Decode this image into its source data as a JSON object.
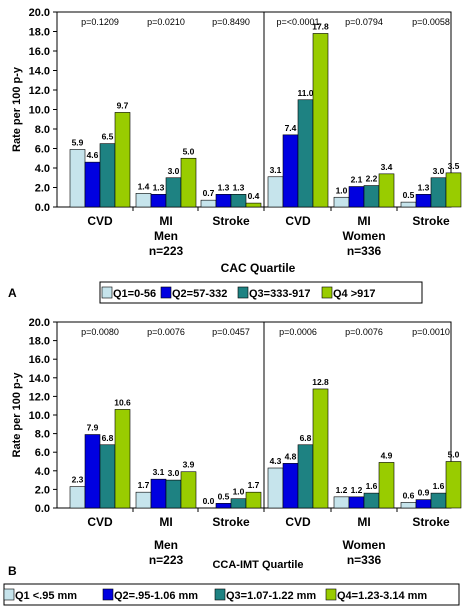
{
  "chart_data": [
    {
      "panel_label": "A",
      "type": "bar",
      "ylabel": "Rate per 100 p-y",
      "ylim": [
        0,
        20
      ],
      "yticks": [
        "0.0",
        "2.0",
        "4.0",
        "6.0",
        "8.0",
        "10.0",
        "12.0",
        "14.0",
        "16.0",
        "18.0",
        "20.0"
      ],
      "xlabel": "CAC Quartile",
      "categories": [
        "CVD",
        "MI",
        "Stroke",
        "CVD",
        "MI",
        "Stroke"
      ],
      "group_labels": [
        {
          "sex": "Men",
          "n": "n=223"
        },
        {
          "sex": "Women",
          "n": "n=336"
        }
      ],
      "p_values": [
        "p=0.1209",
        "p=0.0210",
        "p=0.8490",
        "p=<0.0001",
        "p=0.0794",
        "p=0.0058"
      ],
      "series": [
        {
          "name": "Q1=0-56",
          "color": "#c6e4ec",
          "values": [
            5.9,
            1.4,
            0.7,
            3.1,
            1.0,
            0.5
          ],
          "labels": [
            "5.9",
            "1.4",
            "0.7",
            "3.1",
            "1.0",
            "0.5"
          ]
        },
        {
          "name": "Q2=57-332",
          "color": "#0000e0",
          "values": [
            4.6,
            1.3,
            1.3,
            7.4,
            2.1,
            1.3
          ],
          "labels": [
            "4.6",
            "1.3",
            "1.3",
            "7.4",
            "2.1",
            "1.3"
          ]
        },
        {
          "name": "Q3=333-917",
          "color": "#1e8282",
          "values": [
            6.5,
            3.0,
            1.3,
            11.0,
            2.2,
            3.0
          ],
          "labels": [
            "6.5",
            "3.0",
            "1.3",
            "11.0",
            "2.2",
            "3.0"
          ]
        },
        {
          "name": "Q4 >917",
          "color": "#99cc00",
          "values": [
            9.7,
            5.0,
            0.4,
            17.8,
            3.4,
            3.5
          ],
          "labels": [
            "9.7",
            "5.0",
            "0.4",
            "17.8",
            "3.4",
            "3.5"
          ]
        }
      ]
    },
    {
      "panel_label": "B",
      "type": "bar",
      "ylabel": "Rate per 100 p-y",
      "ylim": [
        0,
        20
      ],
      "yticks": [
        "0.0",
        "2.0",
        "4.0",
        "6.0",
        "8.0",
        "10.0",
        "12.0",
        "14.0",
        "16.0",
        "18.0",
        "20.0"
      ],
      "xlabel": "CCA-IMT Quartile",
      "categories": [
        "CVD",
        "MI",
        "Stroke",
        "CVD",
        "MI",
        "Stroke"
      ],
      "group_labels": [
        {
          "sex": "Men",
          "n": "n=223"
        },
        {
          "sex": "Women",
          "n": "n=336"
        }
      ],
      "p_values": [
        "p=0.0080",
        "p=0.0076",
        "p=0.0457",
        "p=0.0006",
        "p=0.0076",
        "p=0.0010"
      ],
      "series": [
        {
          "name": "Q1 <.95 mm",
          "color": "#c6e4ec",
          "values": [
            2.3,
            1.7,
            0.0,
            4.3,
            1.2,
            0.6
          ],
          "labels": [
            "2.3",
            "1.7",
            "0.0",
            "4.3",
            "1.2",
            "0.6"
          ]
        },
        {
          "name": "Q2=.95-1.06 mm",
          "color": "#0000e0",
          "values": [
            7.9,
            3.1,
            0.5,
            4.8,
            1.2,
            0.9
          ],
          "labels": [
            "7.9",
            "3.1",
            "0.5",
            "4.8",
            "1.2",
            "0.9"
          ]
        },
        {
          "name": "Q3=1.07-1.22 mm",
          "color": "#1e8282",
          "values": [
            6.8,
            3.0,
            1.0,
            6.8,
            1.6,
            1.6
          ],
          "labels": [
            "6.8",
            "3.0",
            "1.0",
            "6.8",
            "1.6",
            "1.6"
          ]
        },
        {
          "name": "Q4=1.23-3.14 mm",
          "color": "#99cc00",
          "values": [
            10.6,
            3.9,
            1.7,
            12.8,
            4.9,
            5.0
          ],
          "labels": [
            "10.6",
            "3.9",
            "1.7",
            "12.8",
            "4.9",
            "5.0"
          ]
        }
      ]
    }
  ]
}
